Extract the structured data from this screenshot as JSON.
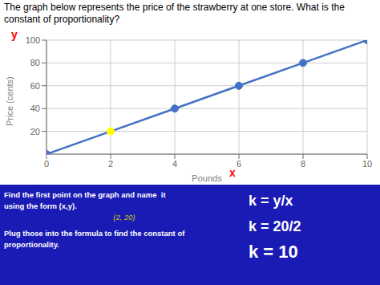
{
  "chart_data": {
    "type": "line",
    "title": "The graph below represents the price of the strawberry at one store. What is the constant of proportionality?",
    "x": [
      0,
      2,
      4,
      6,
      8,
      10
    ],
    "values": [
      0,
      20,
      40,
      60,
      80,
      100
    ],
    "color": "#4472c4",
    "colors": [
      "#4472c4",
      "#ffff00",
      "#4472c4",
      "#4472c4",
      "#4472c4",
      "#4472c4"
    ],
    "marker": "circle",
    "xlim": [
      0,
      10
    ],
    "ylim": [
      0,
      100
    ],
    "xticks": [
      0,
      2,
      4,
      6,
      8,
      10
    ],
    "yticks": [
      20,
      40,
      60,
      80,
      100
    ],
    "xlabel": "Pounds",
    "ylabel": "Price (cents)",
    "grid": true,
    "annotations": [
      {
        "text": "y",
        "color": "red"
      },
      {
        "text": "x",
        "color": "red"
      }
    ],
    "panel": {
      "color": "#1a1ab5",
      "texts": [
        {
          "text": "Find the first point on the graph and name  it",
          "color": "#ffffff"
        },
        {
          "text": "using the form (x,y).",
          "color": "#ffffff"
        },
        {
          "text": "(2, 20)",
          "color": "#cccc00"
        },
        {
          "text": "Plug those into the formula to find the constant of",
          "color": "#ffffff"
        },
        {
          "text": "proportionality.",
          "color": "#ffffff"
        },
        {
          "text": "k = y/x",
          "color": "#ffffff"
        },
        {
          "text": "k = 20/2",
          "color": "#ffffff"
        },
        {
          "text": "k = 10",
          "color": "#ffffff"
        }
      ]
    }
  }
}
